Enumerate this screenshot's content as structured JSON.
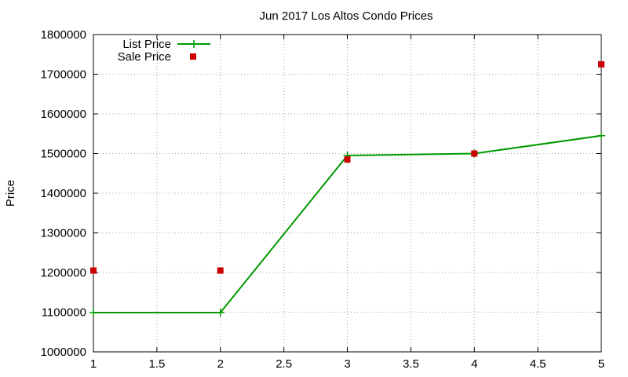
{
  "chart_data": {
    "type": "line",
    "title": "Jun 2017 Los Altos Condo Prices",
    "xlabel": "",
    "ylabel": "Price",
    "xlim": [
      1,
      5
    ],
    "ylim": [
      1000000,
      1800000
    ],
    "x_ticks": [
      "1",
      "1.5",
      "2",
      "2.5",
      "3",
      "3.5",
      "4",
      "4.5",
      "5"
    ],
    "y_ticks": [
      "1000000",
      "1100000",
      "1200000",
      "1300000",
      "1400000",
      "1500000",
      "1600000",
      "1700000",
      "1800000"
    ],
    "grid": true,
    "legend_position": "top-left",
    "series": [
      {
        "name": "List Price",
        "style": "line-with-plus-markers",
        "color": "#009900",
        "x": [
          1,
          2,
          3,
          4,
          5
        ],
        "y": [
          1099000,
          1099000,
          1495000,
          1500000,
          1545000
        ]
      },
      {
        "name": "Sale Price",
        "style": "square-markers",
        "color": "#cc0000",
        "x": [
          1,
          2,
          3,
          4,
          5
        ],
        "y": [
          1205000,
          1205000,
          1485000,
          1500000,
          1725000
        ]
      }
    ]
  }
}
